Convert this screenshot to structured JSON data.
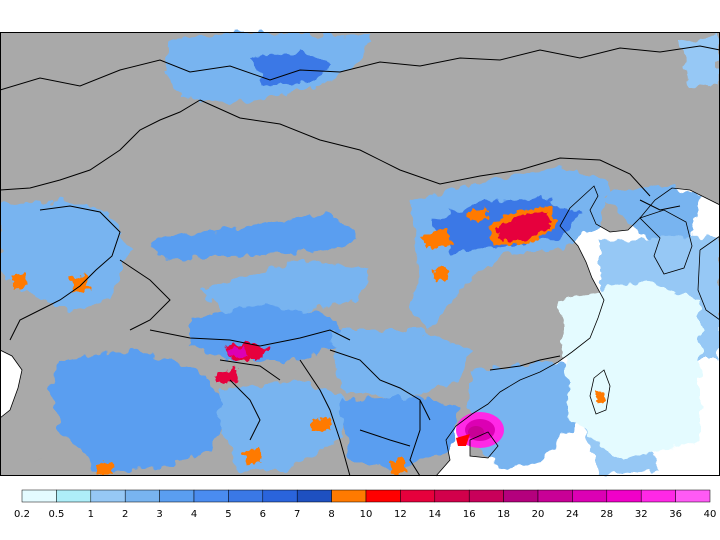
{
  "map": {
    "land_color": "#a9a9a9",
    "ocean_color": "#ffffff",
    "border_color": "#000000",
    "features": [
      "precipitation-field",
      "country-borders",
      "coastline"
    ],
    "heavy_rain_areas": [
      "north-china-plain",
      "eastern-himalaya",
      "south-china-coast-typhoon",
      "taiwan"
    ]
  },
  "legend": {
    "colors": [
      "#e4fbff",
      "#aeeef8",
      "#96c8f5",
      "#78b4f0",
      "#5a9ef0",
      "#4a8cf0",
      "#3a78e6",
      "#2a64dc",
      "#1e50c0",
      "#ff7a00",
      "#ff0000",
      "#e6003c",
      "#d2004b",
      "#c8005a",
      "#b4007d",
      "#c80096",
      "#dc00b4",
      "#f000c8",
      "#ff28e6",
      "#ff5af5"
    ],
    "labels": [
      "0.2",
      "0.5",
      "1",
      "2",
      "3",
      "4",
      "5",
      "6",
      "7",
      "8",
      "10",
      "12",
      "14",
      "16",
      "18",
      "20",
      "24",
      "28",
      "32",
      "36",
      "40"
    ]
  }
}
